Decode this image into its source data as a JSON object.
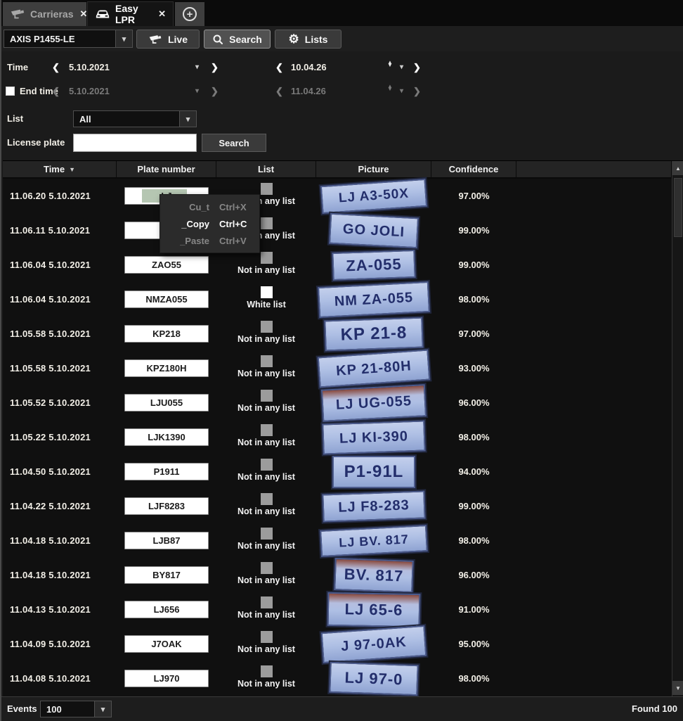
{
  "glyphs": {
    "close": "✕",
    "plus": "+",
    "dropdown": "▾",
    "chev_left": "❮",
    "chev_right": "❯",
    "spin_up": "▲",
    "spin_down": "▼",
    "sort_desc": "▼",
    "gear": "⚙",
    "scroll_up": "▲",
    "scroll_down": "▼"
  },
  "tabs": {
    "items": [
      {
        "label": "Carrieras"
      },
      {
        "label": "Easy LPR"
      }
    ]
  },
  "toolbar": {
    "camera_select": "AXIS P1455-LE",
    "live": "Live",
    "search": "Search",
    "lists": "Lists"
  },
  "filters": {
    "time_label": "Time",
    "start_date": "5.10.2021",
    "start_time": "10.04.26",
    "end_time_label": "End time",
    "end_date": "5.10.2021",
    "end_time": "11.04.26",
    "list_label": "List",
    "list_value": "All",
    "license_plate_label": "License plate",
    "license_plate_value": "",
    "search_button": "Search"
  },
  "table": {
    "headers": {
      "time": "Time",
      "plate": "Plate number",
      "list": "List",
      "picture": "Picture",
      "confidence": "Confidence"
    },
    "rows": [
      {
        "time": "11.06.20 5.10.2021",
        "plate": "LJ",
        "list": "Not in any list",
        "picture": "LJ A3-50X",
        "confidence": "97.00%"
      },
      {
        "time": "11.06.11 5.10.2021",
        "plate": "G",
        "list": "Not in any list",
        "picture": "GO JOLI",
        "confidence": "99.00%"
      },
      {
        "time": "11.06.04 5.10.2021",
        "plate": "ZAO55",
        "list": "Not in any list",
        "picture": "ZA-055",
        "confidence": "99.00%"
      },
      {
        "time": "11.06.04 5.10.2021",
        "plate": "NMZA055",
        "list": "White list",
        "picture": "NM ZA-055",
        "confidence": "98.00%"
      },
      {
        "time": "11.05.58 5.10.2021",
        "plate": "KP218",
        "list": "Not in any list",
        "picture": "KP 21-8",
        "confidence": "97.00%"
      },
      {
        "time": "11.05.58 5.10.2021",
        "plate": "KPZ180H",
        "list": "Not in any list",
        "picture": "KP 21-80H",
        "confidence": "93.00%"
      },
      {
        "time": "11.05.52 5.10.2021",
        "plate": "LJU055",
        "list": "Not in any list",
        "picture": "LJ UG-055",
        "confidence": "96.00%"
      },
      {
        "time": "11.05.22 5.10.2021",
        "plate": "LJK1390",
        "list": "Not in any list",
        "picture": "LJ KI-390",
        "confidence": "98.00%"
      },
      {
        "time": "11.04.50 5.10.2021",
        "plate": "P1911",
        "list": "Not in any list",
        "picture": "P1-91L",
        "confidence": "94.00%"
      },
      {
        "time": "11.04.22 5.10.2021",
        "plate": "LJF8283",
        "list": "Not in any list",
        "picture": "LJ F8-283",
        "confidence": "99.00%"
      },
      {
        "time": "11.04.18 5.10.2021",
        "plate": "LJB87",
        "list": "Not in any list",
        "picture": "LJ BV. 817",
        "confidence": "98.00%"
      },
      {
        "time": "11.04.18 5.10.2021",
        "plate": "BY817",
        "list": "Not in any list",
        "picture": "BV. 817",
        "confidence": "96.00%"
      },
      {
        "time": "11.04.13 5.10.2021",
        "plate": "LJ656",
        "list": "Not in any list",
        "picture": "LJ 65-6",
        "confidence": "91.00%"
      },
      {
        "time": "11.04.09 5.10.2021",
        "plate": "J7OAK",
        "list": "Not in any list",
        "picture": "J 97-0AK",
        "confidence": "95.00%"
      },
      {
        "time": "11.04.08 5.10.2021",
        "plate": "LJ970",
        "list": "Not in any list",
        "picture": "LJ 97-0",
        "confidence": "98.00%"
      }
    ]
  },
  "context_menu": {
    "items": [
      {
        "label": "Cu_t",
        "shortcut": "Ctrl+X",
        "enabled": false
      },
      {
        "label": "_Copy",
        "shortcut": "Ctrl+C",
        "enabled": true
      },
      {
        "label": "_Paste",
        "shortcut": "Ctrl+V",
        "enabled": false
      }
    ]
  },
  "footer": {
    "events_label": "Events",
    "events_value": "100",
    "found": "Found 100"
  },
  "colors": {
    "white_list_square": "#ffffff",
    "not_in_list_square": "#9c9c9c",
    "plate_picture_bg": "#aebfe4",
    "plate_picture_text": "#232e6b"
  }
}
